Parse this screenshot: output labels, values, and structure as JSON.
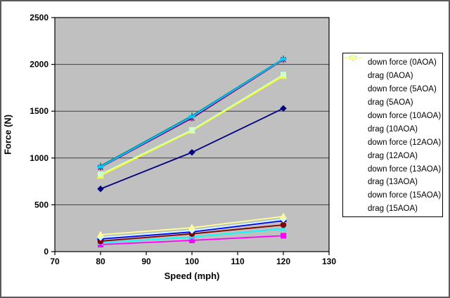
{
  "window": {
    "background": "#FFFFFF",
    "frame_border_color": "#5A5A5A"
  },
  "chart_data": {
    "type": "line",
    "title": "",
    "xlabel": "Speed (mph)",
    "ylabel": "Force (N)",
    "xlim": [
      70,
      130
    ],
    "ylim": [
      0,
      2500
    ],
    "x_ticks": [
      70,
      80,
      90,
      100,
      110,
      120,
      130
    ],
    "y_ticks": [
      0,
      500,
      1000,
      1500,
      2000,
      2500
    ],
    "grid": "horizontal-only",
    "gridline_color": "#3f3f3f",
    "plot_background": "#C0C0C0",
    "axis_color": "#000000",
    "legend_position": "right",
    "x": [
      80,
      100,
      120
    ],
    "series": [
      {
        "name": "down force (0AOA)",
        "color": "#000080",
        "marker": "diamond",
        "values": [
          670,
          1060,
          1530
        ]
      },
      {
        "name": "drag (0AOA)",
        "color": "#FF00FF",
        "marker": "square",
        "values": [
          75,
          120,
          170
        ]
      },
      {
        "name": "down force (5AOA)",
        "color": "#FFFF00",
        "marker": "triangle",
        "values": [
          810,
          1290,
          1875
        ]
      },
      {
        "name": "drag (5AOA)",
        "color": "#00FFFF",
        "marker": "x",
        "values": [
          95,
          155,
          245
        ]
      },
      {
        "name": "down force (10AOA)",
        "color": "#800080",
        "marker": "asterisk",
        "values": [
          900,
          1425,
          2050
        ]
      },
      {
        "name": "drag (10AOA)",
        "color": "#800000",
        "marker": "circle",
        "values": [
          112,
          190,
          285
        ]
      },
      {
        "name": "down force (12AOA)",
        "color": "#008080",
        "marker": "plus",
        "values": [
          915,
          1450,
          2060
        ]
      },
      {
        "name": "drag (12AOA)",
        "color": "#0000FF",
        "marker": "dash",
        "values": [
          135,
          210,
          330
        ]
      },
      {
        "name": "down force (13AOA)",
        "color": "#00CCFF",
        "marker": "dash",
        "values": [
          905,
          1440,
          2055
        ]
      },
      {
        "name": "drag (13AOA)",
        "color": "#CCFFFF",
        "marker": "diamond",
        "values": [
          150,
          225,
          345
        ]
      },
      {
        "name": "down force (15AOA)",
        "color": "#CCFFCC",
        "marker": "square",
        "values": [
          825,
          1300,
          1890
        ]
      },
      {
        "name": "drag (15AOA)",
        "color": "#FFFF99",
        "marker": "triangle",
        "values": [
          180,
          255,
          375
        ]
      }
    ]
  }
}
